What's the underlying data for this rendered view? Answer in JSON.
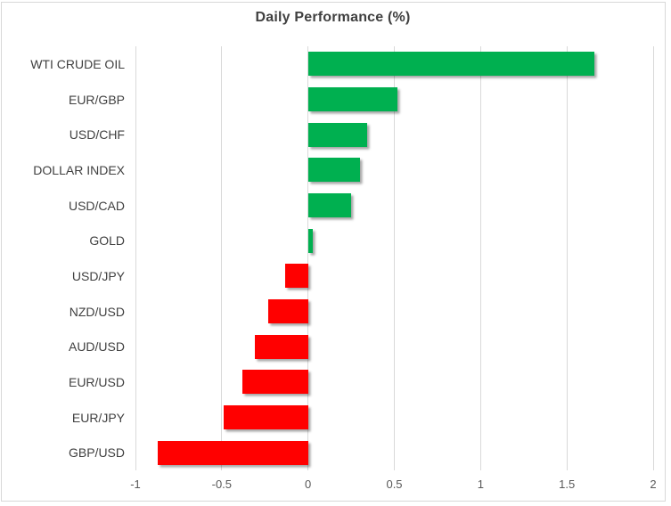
{
  "chart_data": {
    "type": "bar",
    "orientation": "horizontal",
    "title": "Daily Performance (%)",
    "categories": [
      "WTI CRUDE OIL",
      "EUR/GBP",
      "USD/CHF",
      "DOLLAR INDEX",
      "USD/CAD",
      "GOLD",
      "USD/JPY",
      "NZD/USD",
      "AUD/USD",
      "EUR/USD",
      "EUR/JPY",
      "GBP/USD"
    ],
    "values": [
      1.66,
      0.52,
      0.34,
      0.3,
      0.25,
      0.03,
      -0.13,
      -0.23,
      -0.31,
      -0.38,
      -0.49,
      -0.87
    ],
    "xlabel": "",
    "ylabel": "",
    "xlim": [
      -1,
      2
    ],
    "xticks": [
      -1,
      -0.5,
      0,
      0.5,
      1,
      1.5,
      2
    ],
    "xtick_labels": [
      "-1",
      "-0.5",
      "0",
      "0.5",
      "1",
      "1.5",
      "2"
    ],
    "grid": true,
    "legend": null,
    "colors": {
      "positive": "#00B050",
      "negative": "#FF0000",
      "gridline": "#d9d9d9",
      "title_text": "#404040",
      "category_text": "#404040",
      "tick_text": "#595959",
      "frame_border": "#d8d8d8",
      "background": "#ffffff"
    }
  }
}
